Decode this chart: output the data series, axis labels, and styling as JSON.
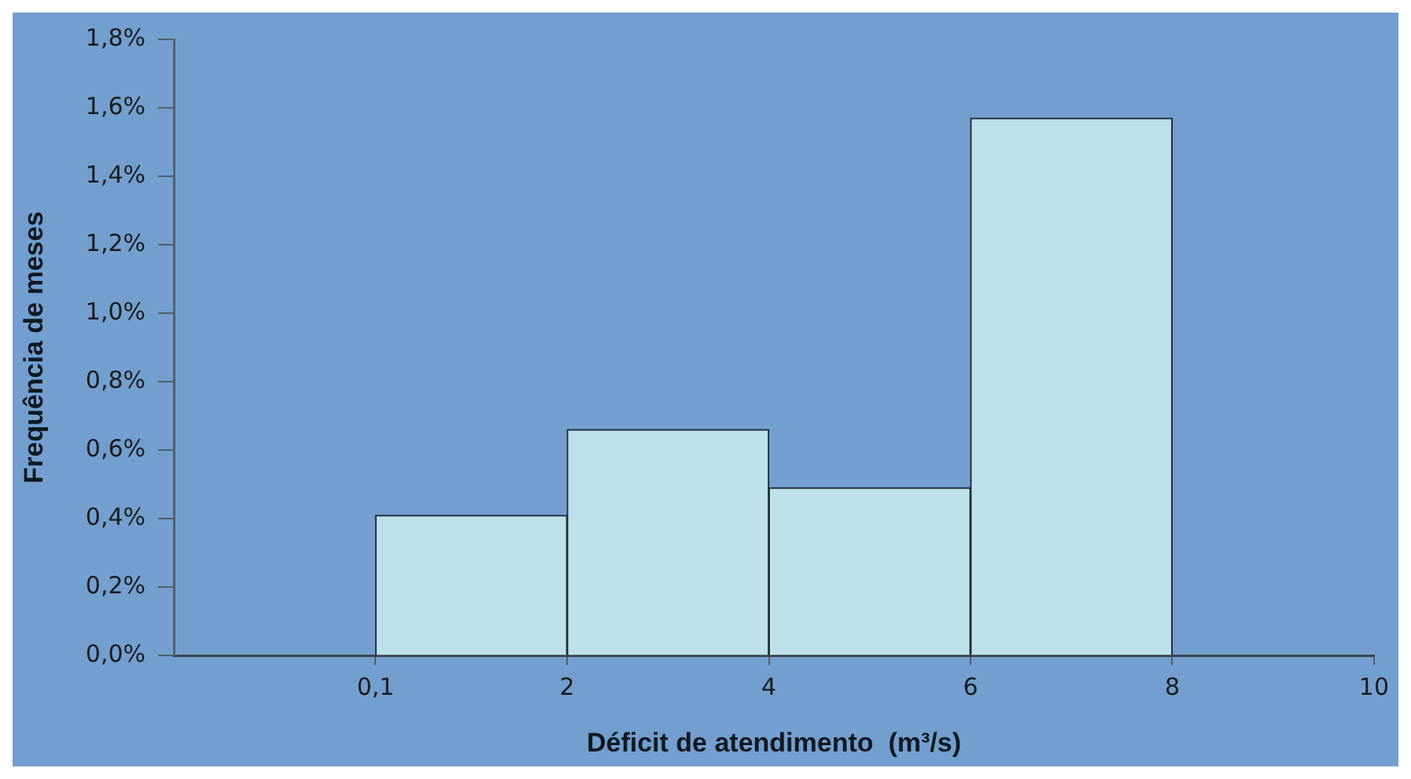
{
  "chart_data": {
    "type": "histogram",
    "xlabel": "Déficit de atendimento  (m³/s)",
    "ylabel": "Frequência de meses",
    "bins": [
      0.1,
      2,
      4,
      6,
      8
    ],
    "values": [
      0.41,
      0.66,
      0.49,
      1.57
    ],
    "color": "#bde0ea",
    "xlim": [
      -1.9,
      10
    ],
    "xticks": [
      {
        "value": 0.1,
        "label": "0,1"
      },
      2,
      4,
      6,
      8,
      10
    ],
    "ylim": [
      0,
      1.8
    ],
    "yticks": [
      {
        "value": 0,
        "label": "0,0%"
      },
      {
        "value": 0.2,
        "label": "0,2%"
      },
      {
        "value": 0.4,
        "label": "0,4%"
      },
      {
        "value": 0.6,
        "label": "0,6%"
      },
      {
        "value": 0.8,
        "label": "0,8%"
      },
      {
        "value": 1.0,
        "label": "1,0%"
      },
      {
        "value": 1.2,
        "label": "1,2%"
      },
      {
        "value": 1.4,
        "label": "1,4%"
      },
      {
        "value": 1.6,
        "label": "1,6%"
      },
      {
        "value": 1.8,
        "label": "1,8%"
      }
    ],
    "grid": false,
    "legend": false
  }
}
